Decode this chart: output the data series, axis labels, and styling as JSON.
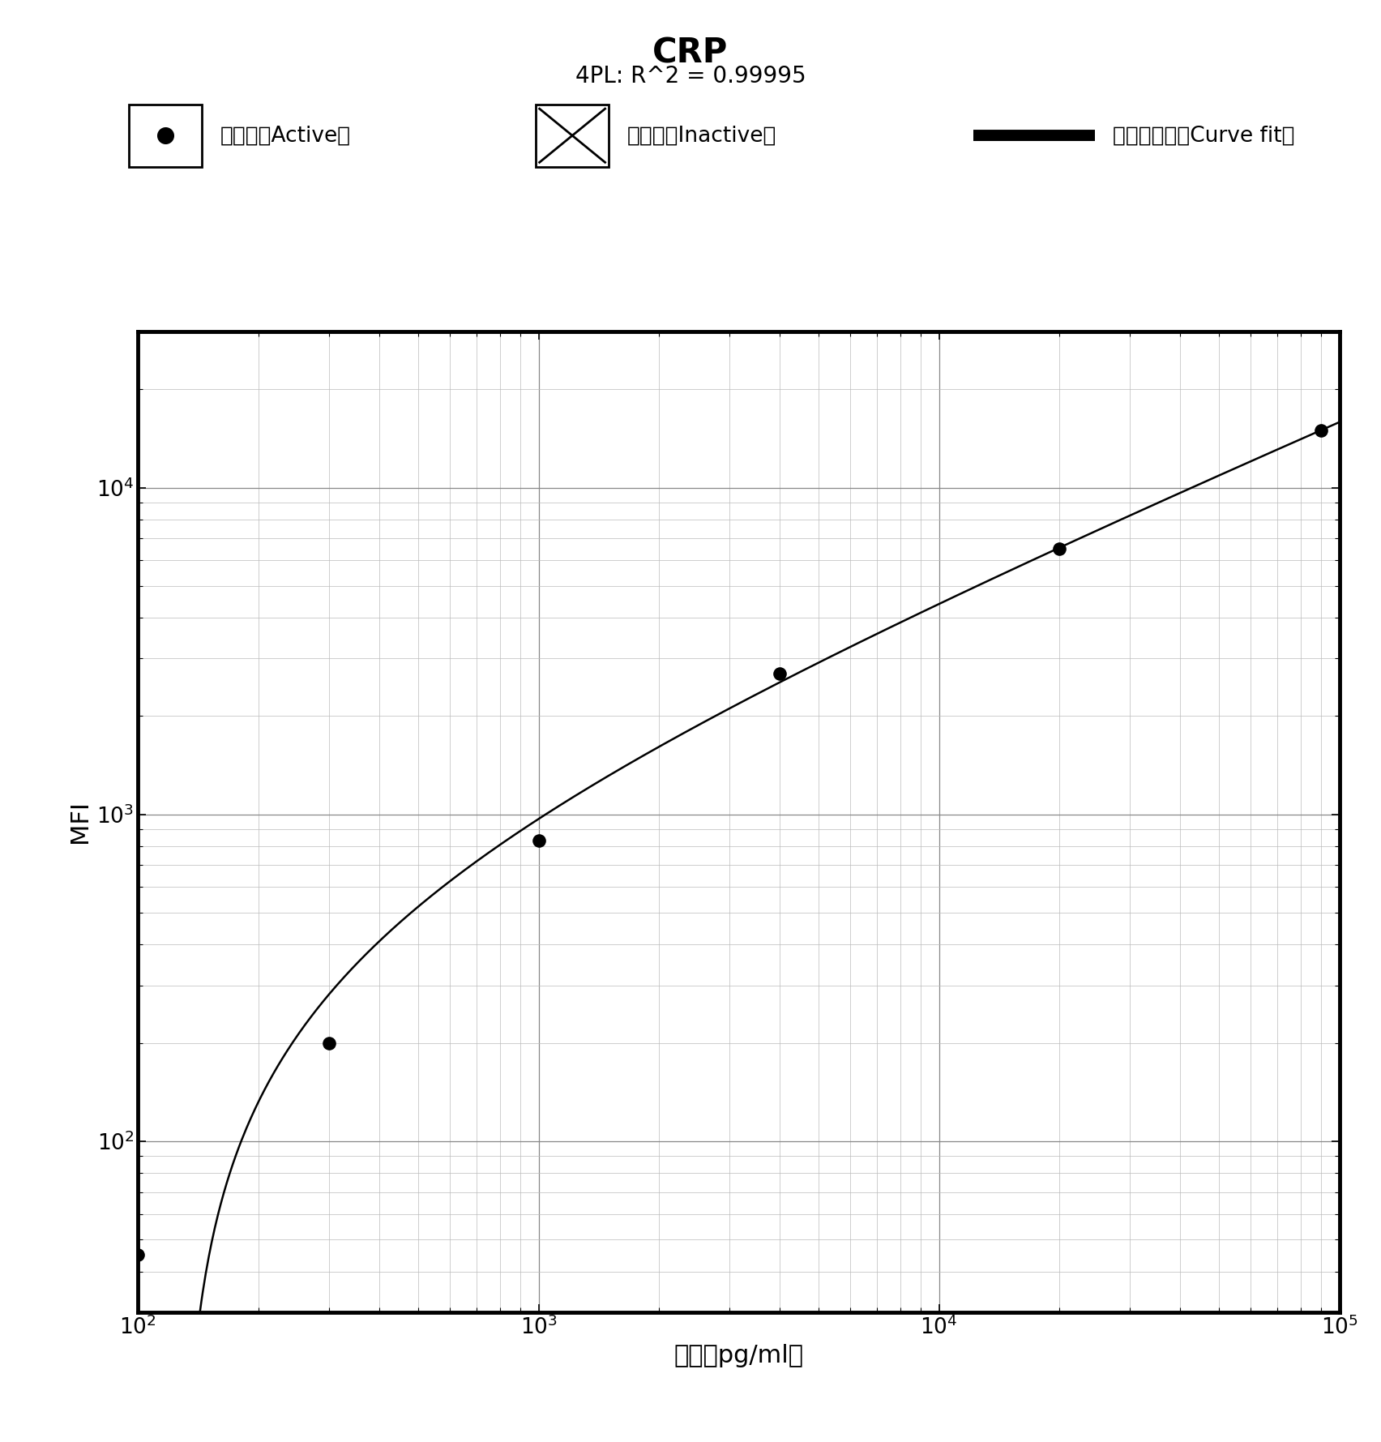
{
  "title": "CRP",
  "subtitle": "4PL: R^2 = 0.99995",
  "xlabel": "浓度（pg/ml）",
  "ylabel": "MFI",
  "xlim": [
    100,
    100000
  ],
  "ylim": [
    30,
    30000
  ],
  "data_x": [
    100,
    300,
    1000,
    4000,
    20000,
    90000
  ],
  "data_y": [
    45,
    200,
    830,
    2700,
    6500,
    15000
  ],
  "curve_x_log_start": 2.0,
  "curve_x_log_end": 5.0,
  "line_color": "#000000",
  "dot_color": "#000000",
  "dot_size": 120,
  "background_color": "#ffffff",
  "grid_major_color": "#888888",
  "grid_minor_color": "#bbbbbb",
  "border_color": "#000000",
  "legend_active_label": "有效点（Active）",
  "legend_inactive_label": "无效点（Inactive）",
  "legend_curvefit_label": "曲线吸合度（Curve fit）",
  "title_fontsize": 30,
  "subtitle_fontsize": 20,
  "axis_label_fontsize": 22,
  "tick_fontsize": 19,
  "legend_fontsize": 19
}
